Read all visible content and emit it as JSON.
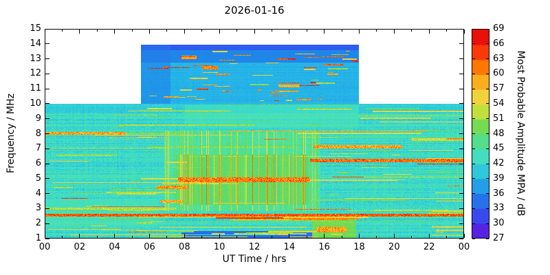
{
  "chart_data": {
    "type": "heatmap",
    "title": "2026-01-16",
    "xlabel": "UT Time / hrs",
    "ylabel": "Frequency / MHz",
    "x_range": [
      0,
      24
    ],
    "y_range": [
      1,
      15
    ],
    "x_tick_values": [
      0,
      2,
      4,
      6,
      8,
      10,
      12,
      14,
      16,
      18,
      20,
      22,
      24
    ],
    "x_tick_labels": [
      "00",
      "02",
      "04",
      "06",
      "08",
      "10",
      "12",
      "14",
      "16",
      "18",
      "20",
      "22",
      "00"
    ],
    "x_minor_ticks": [
      1,
      3,
      5,
      7,
      9,
      11,
      13,
      15,
      17,
      19,
      21,
      23
    ],
    "y_tick_values": [
      1,
      2,
      3,
      4,
      5,
      6,
      7,
      8,
      9,
      10,
      11,
      12,
      13,
      14,
      15
    ],
    "grid": false,
    "colorbar": {
      "label": "Most Probable Amplitude MPA / dB",
      "min": 27,
      "max": 69,
      "tick_step": 3,
      "tick_values": [
        27,
        30,
        33,
        36,
        39,
        42,
        45,
        48,
        51,
        54,
        57,
        60,
        63,
        66,
        69
      ],
      "stops": [
        {
          "v": 27,
          "c": "#6a0fd8"
        },
        {
          "v": 30,
          "c": "#4436ee"
        },
        {
          "v": 33,
          "c": "#2e5bf0"
        },
        {
          "v": 36,
          "c": "#1f87e8"
        },
        {
          "v": 39,
          "c": "#25b6e8"
        },
        {
          "v": 42,
          "c": "#38d9cc"
        },
        {
          "v": 45,
          "c": "#4fe3b0"
        },
        {
          "v": 48,
          "c": "#55d968"
        },
        {
          "v": 51,
          "c": "#93dc3e"
        },
        {
          "v": 54,
          "c": "#efe23c"
        },
        {
          "v": 57,
          "c": "#f4c23a"
        },
        {
          "v": 60,
          "c": "#ff9a00"
        },
        {
          "v": 63,
          "c": "#ff5400"
        },
        {
          "v": 66,
          "c": "#f2200f"
        },
        {
          "v": 69,
          "c": "#dd0000"
        }
      ]
    },
    "no_data_color": "#ffffff",
    "base_level_db": 42.5,
    "coverage": [
      {
        "t0": 0,
        "t1": 5.5,
        "f0": 1,
        "f1": 10
      },
      {
        "t0": 5.5,
        "t1": 18,
        "f0": 1,
        "f1": 14
      },
      {
        "t0": 18,
        "t1": 24,
        "f0": 1,
        "f1": 10
      }
    ],
    "features": [
      {
        "name": "upper-band-base",
        "mode": "area",
        "t0": 5.5,
        "t1": 18,
        "f0": 10,
        "f1": 14,
        "db": 37.5,
        "w": 0.75
      },
      {
        "name": "upper-band-top",
        "mode": "area",
        "t0": 5.5,
        "t1": 18,
        "f0": 12.8,
        "f1": 14,
        "db": 34,
        "w": 0.6
      },
      {
        "name": "upper-band-rim",
        "mode": "area",
        "t0": 5.5,
        "t1": 18,
        "f0": 13.6,
        "f1": 14,
        "db": 32,
        "w": 0.7
      },
      {
        "name": "upper-band-left",
        "mode": "area",
        "t0": 5.5,
        "t1": 7.2,
        "f0": 10,
        "f1": 14,
        "db": 35,
        "w": 0.5
      },
      {
        "name": "below-10-strip",
        "mode": "area",
        "t0": 0,
        "t1": 24,
        "f0": 9.4,
        "f1": 10,
        "db": 39,
        "w": 0.5
      },
      {
        "name": "early-low-green",
        "mode": "area",
        "t0": 0,
        "t1": 6.5,
        "f0": 1.8,
        "f1": 3.6,
        "db": 46,
        "w": 0.4
      },
      {
        "name": "daytime-wash",
        "mode": "area",
        "t0": 6.8,
        "t1": 15.8,
        "f0": 2.8,
        "f1": 8.2,
        "db": 49,
        "w": 0.5,
        "stripes": true
      },
      {
        "name": "daytime-core",
        "mode": "area",
        "t0": 7.5,
        "t1": 15.1,
        "f0": 3.2,
        "f1": 6.6,
        "db": 52,
        "w": 0.4,
        "stripes": true
      },
      {
        "name": "band-9-green",
        "mode": "area",
        "t0": 8,
        "t1": 18,
        "f0": 8.4,
        "f1": 9.9,
        "db": 46,
        "w": 0.35
      },
      {
        "name": "bottom-blue",
        "mode": "area",
        "t0": 7.8,
        "t1": 15.3,
        "f0": 1,
        "f1": 1.45,
        "db": 33,
        "w": 0.85
      },
      {
        "name": "evening-low-warm",
        "mode": "area",
        "t0": 15.3,
        "t1": 17.8,
        "f0": 1,
        "f1": 2.3,
        "db": 54,
        "w": 0.6
      },
      {
        "name": "red-line-2.5MHz",
        "mode": "line",
        "t0": 0,
        "t1": 24,
        "f0": 2.45,
        "f1": 2.62,
        "db": 63,
        "jit": 8
      },
      {
        "name": "orange-line-2.9MHz",
        "mode": "line",
        "t0": 0,
        "t1": 7.5,
        "f0": 2.9,
        "f1": 3.02,
        "db": 52,
        "jit": 6
      },
      {
        "name": "red-8MHz-morning",
        "mode": "line",
        "t0": 0,
        "t1": 4.6,
        "f0": 7.92,
        "f1": 8.1,
        "db": 59,
        "jit": 8
      },
      {
        "name": "red-5MHz-midday",
        "mode": "line",
        "t0": 7.6,
        "t1": 15.2,
        "f0": 4.75,
        "f1": 5.05,
        "db": 61,
        "jit": 9
      },
      {
        "name": "red-4.4MHz-07h",
        "mode": "line",
        "t0": 6.4,
        "t1": 8.2,
        "f0": 4.3,
        "f1": 4.5,
        "db": 60,
        "jit": 8
      },
      {
        "name": "red-3.5MHz-07h",
        "mode": "line",
        "t0": 6.6,
        "t1": 7.9,
        "f0": 3.35,
        "f1": 3.55,
        "db": 58,
        "jit": 8
      },
      {
        "name": "red-6.2MHz-evening",
        "mode": "line",
        "t0": 15.2,
        "t1": 24,
        "f0": 6.08,
        "f1": 6.3,
        "db": 62,
        "jit": 8
      },
      {
        "name": "red-7.1MHz-evening",
        "mode": "line",
        "t0": 15.4,
        "t1": 20.5,
        "f0": 7.0,
        "f1": 7.22,
        "db": 59,
        "jit": 8
      },
      {
        "name": "orange-7.6MHz-late",
        "mode": "line",
        "t0": 21,
        "t1": 24,
        "f0": 7.5,
        "f1": 7.68,
        "db": 53,
        "jit": 6
      },
      {
        "name": "red-blotch-16h-low",
        "mode": "line",
        "t0": 15.6,
        "t1": 17.3,
        "f0": 1.35,
        "f1": 1.75,
        "db": 59,
        "jit": 9
      },
      {
        "name": "red-speck-12.4MHz",
        "mode": "line",
        "t0": 9.0,
        "t1": 9.9,
        "f0": 12.3,
        "f1": 12.55,
        "db": 61,
        "jit": 6
      },
      {
        "name": "red-speck-11.2MHz",
        "mode": "line",
        "t0": 13.4,
        "t1": 14.6,
        "f0": 11.1,
        "f1": 11.32,
        "db": 58,
        "jit": 6
      },
      {
        "name": "red-speck-13.1MHz",
        "mode": "line",
        "t0": 7.8,
        "t1": 8.7,
        "f0": 13.0,
        "f1": 13.25,
        "db": 59,
        "jit": 6
      }
    ],
    "texture": {
      "seed": 77,
      "noise_db": 4,
      "h_streak_count": 170,
      "h_streak_db": [
        45,
        56
      ],
      "red_streak_fraction": 0.08,
      "upper_speck_count": 55,
      "upper_speck_db": [
        50,
        67
      ],
      "stripe_fraction": 0.18
    }
  }
}
